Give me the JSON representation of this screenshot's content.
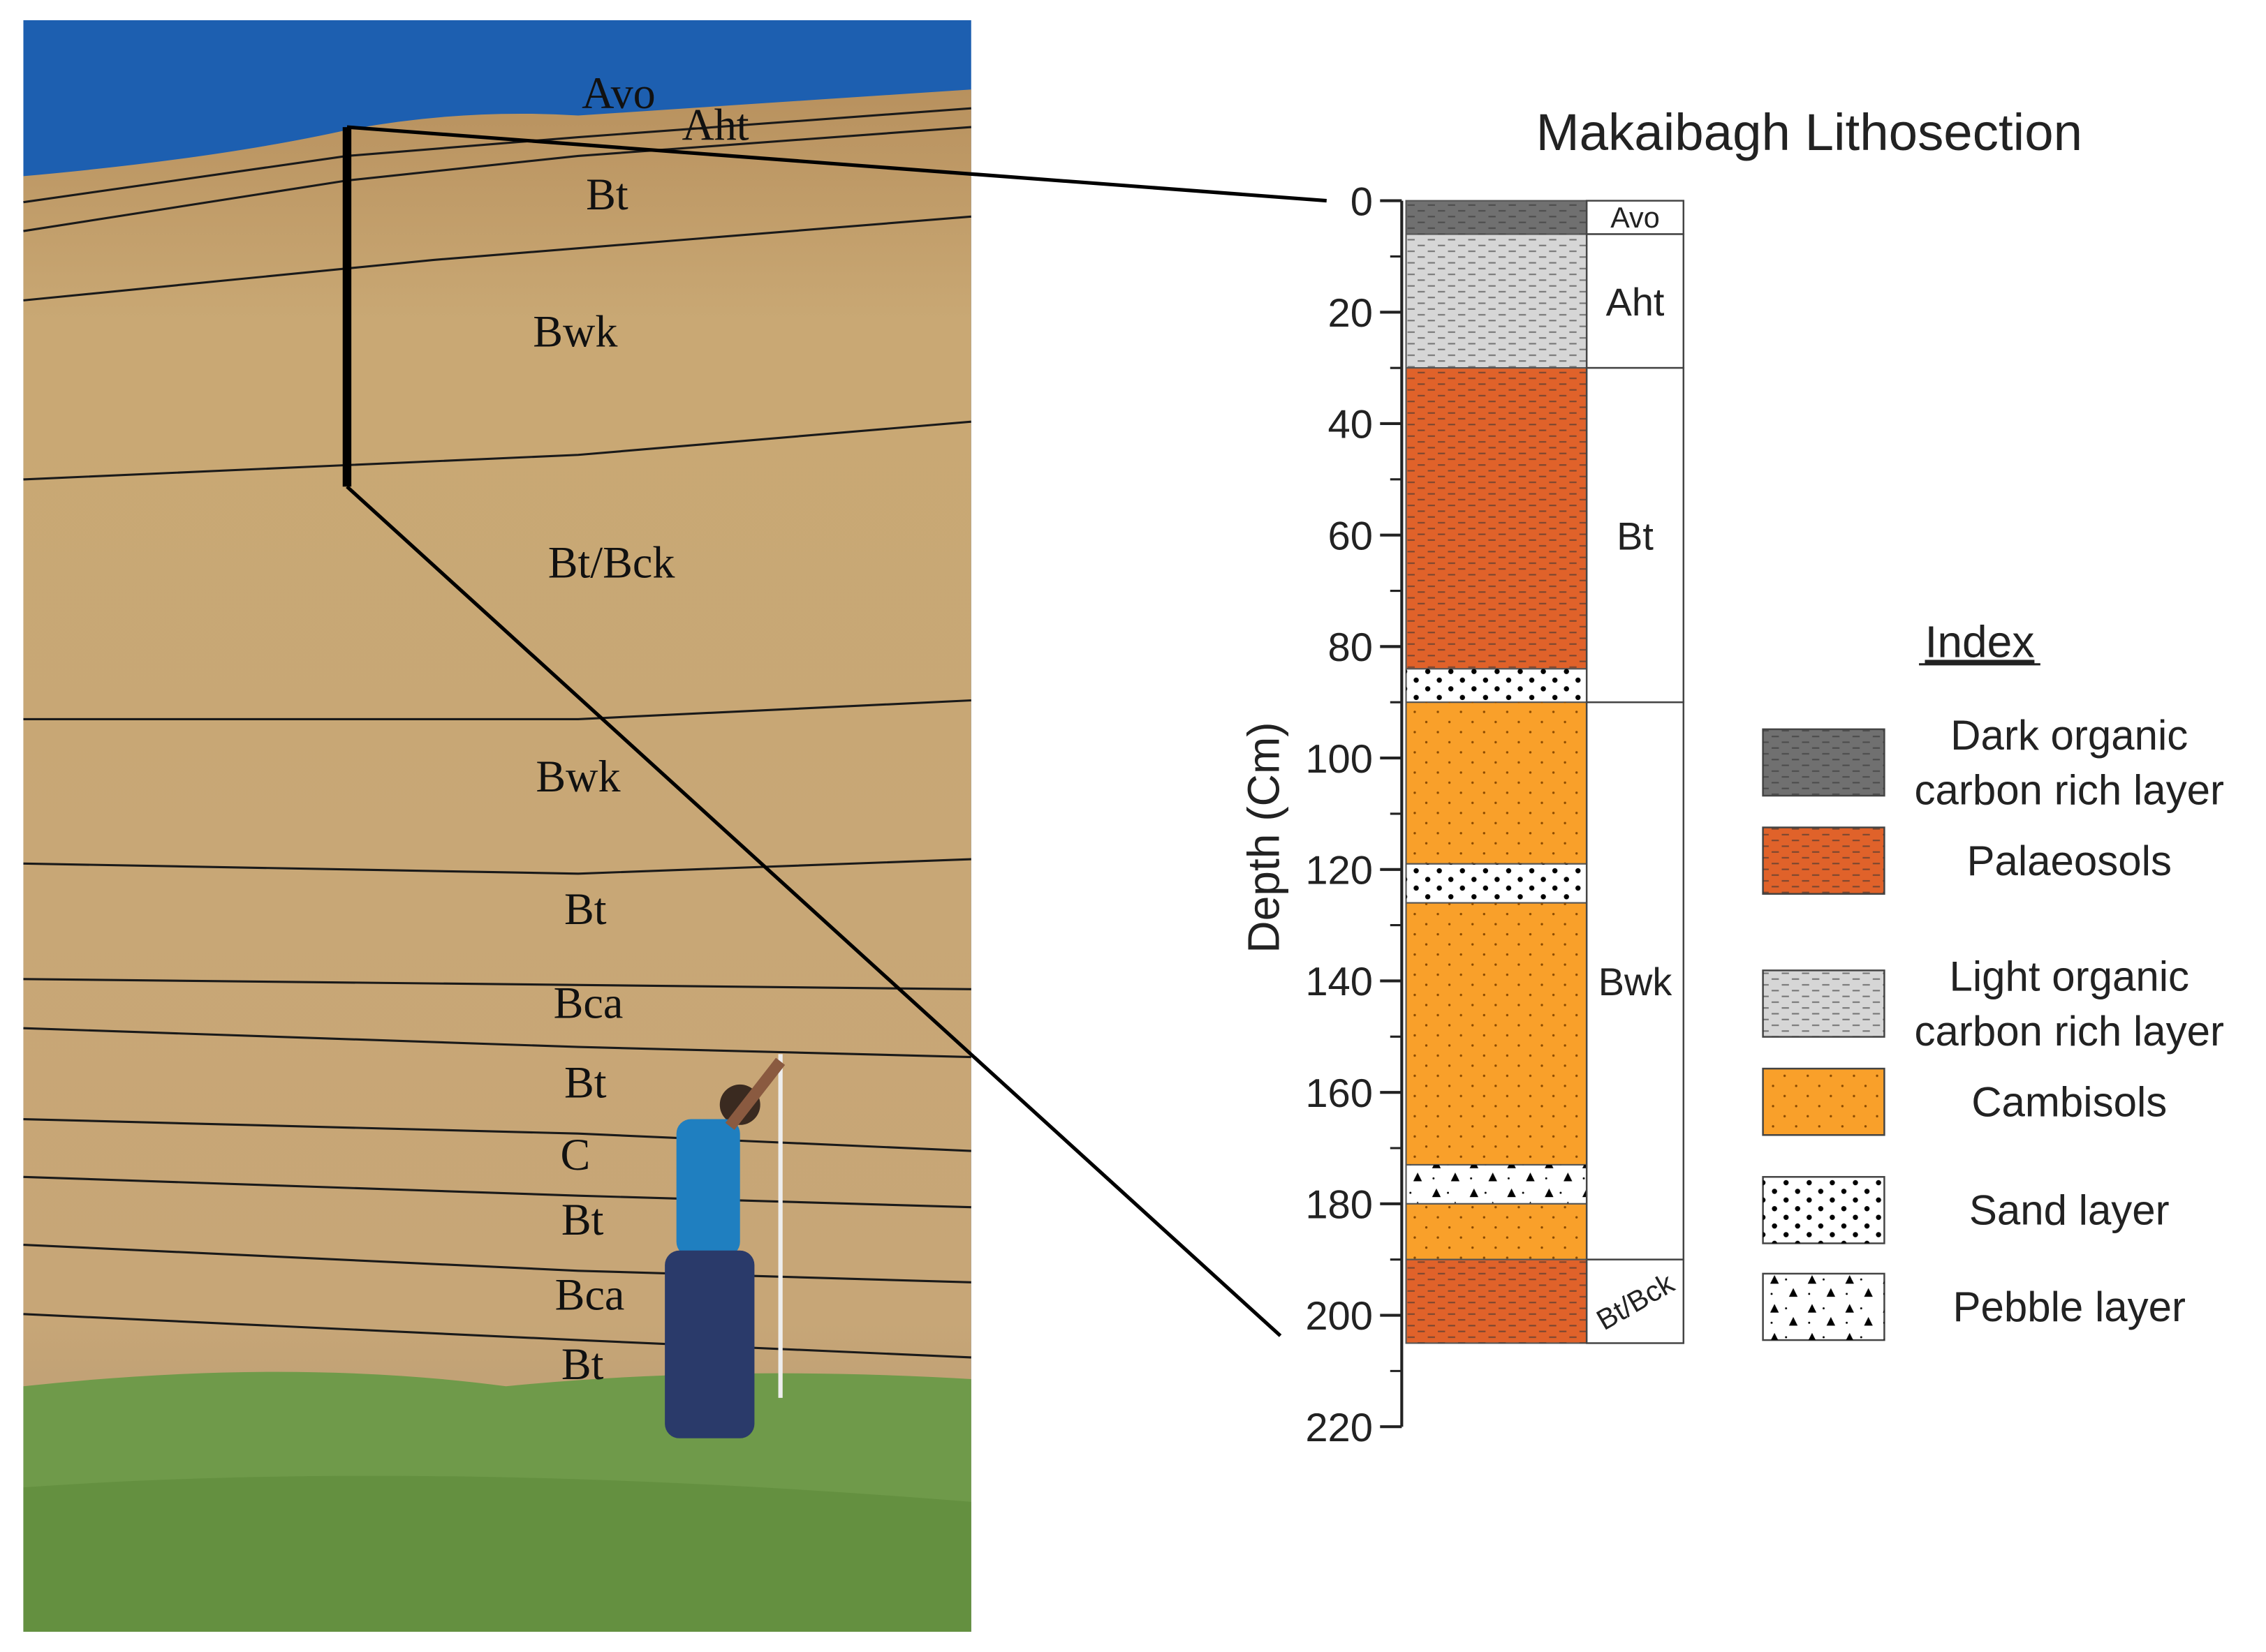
{
  "photo": {
    "labels": [
      "Avo",
      "Aht",
      "Bt",
      "Bwk",
      "Bt/Bck",
      "Bwk",
      "Bt",
      "Bca",
      "Bt",
      "C",
      "Bt",
      "Bca",
      "Bt"
    ]
  },
  "chart_data": {
    "type": "lithosection",
    "title": "Makaibagh Lithosection",
    "y_label": "Depth (Cm)",
    "ylim": [
      0,
      220
    ],
    "yticks": [
      0,
      20,
      40,
      60,
      80,
      100,
      120,
      140,
      160,
      180,
      200,
      220
    ],
    "minor_yticks": [
      10,
      30,
      50,
      70,
      90,
      110,
      130,
      150,
      170,
      190,
      210
    ],
    "layers": [
      {
        "top": 0,
        "bottom": 6,
        "color": "#707070",
        "pattern": "dash"
      },
      {
        "top": 6,
        "bottom": 30,
        "color": "#d6d6d6",
        "pattern": "dash"
      },
      {
        "top": 30,
        "bottom": 84,
        "color": "#e0622a",
        "pattern": "dash"
      },
      {
        "top": 84,
        "bottom": 90,
        "color": "#ffffff",
        "pattern": "sand"
      },
      {
        "top": 90,
        "bottom": 119,
        "color": "#f9a02a",
        "pattern": "stipple"
      },
      {
        "top": 119,
        "bottom": 126,
        "color": "#ffffff",
        "pattern": "sand"
      },
      {
        "top": 126,
        "bottom": 173,
        "color": "#f9a02a",
        "pattern": "stipple"
      },
      {
        "top": 173,
        "bottom": 180,
        "color": "#ffffff",
        "pattern": "pebble"
      },
      {
        "top": 180,
        "bottom": 190,
        "color": "#f9a02a",
        "pattern": "stipple"
      },
      {
        "top": 190,
        "bottom": 205,
        "color": "#e0622a",
        "pattern": "dash"
      }
    ],
    "horizons": [
      {
        "name": "Avo",
        "top": 0,
        "bottom": 6
      },
      {
        "name": "Aht",
        "top": 6,
        "bottom": 30
      },
      {
        "name": "Bt",
        "top": 30,
        "bottom": 90
      },
      {
        "name": "Bwk",
        "top": 90,
        "bottom": 190
      },
      {
        "name": "Bt/Bck",
        "top": 190,
        "bottom": 205
      }
    ],
    "legend": {
      "title": "Index",
      "items": [
        {
          "label": [
            "Dark organic",
            "carbon rich layer"
          ],
          "color": "#707070",
          "pattern": "dash"
        },
        {
          "label": [
            "Palaeosols"
          ],
          "color": "#e0622a",
          "pattern": "dash"
        },
        {
          "label": [
            "Light organic",
            "carbon rich layer"
          ],
          "color": "#d6d6d6",
          "pattern": "dash"
        },
        {
          "label": [
            "Cambisols"
          ],
          "color": "#f9a02a",
          "pattern": "stipple"
        },
        {
          "label": [
            "Sand layer"
          ],
          "color": "#ffffff",
          "pattern": "sand"
        },
        {
          "label": [
            "Pebble layer"
          ],
          "color": "#ffffff",
          "pattern": "pebble"
        }
      ]
    }
  }
}
